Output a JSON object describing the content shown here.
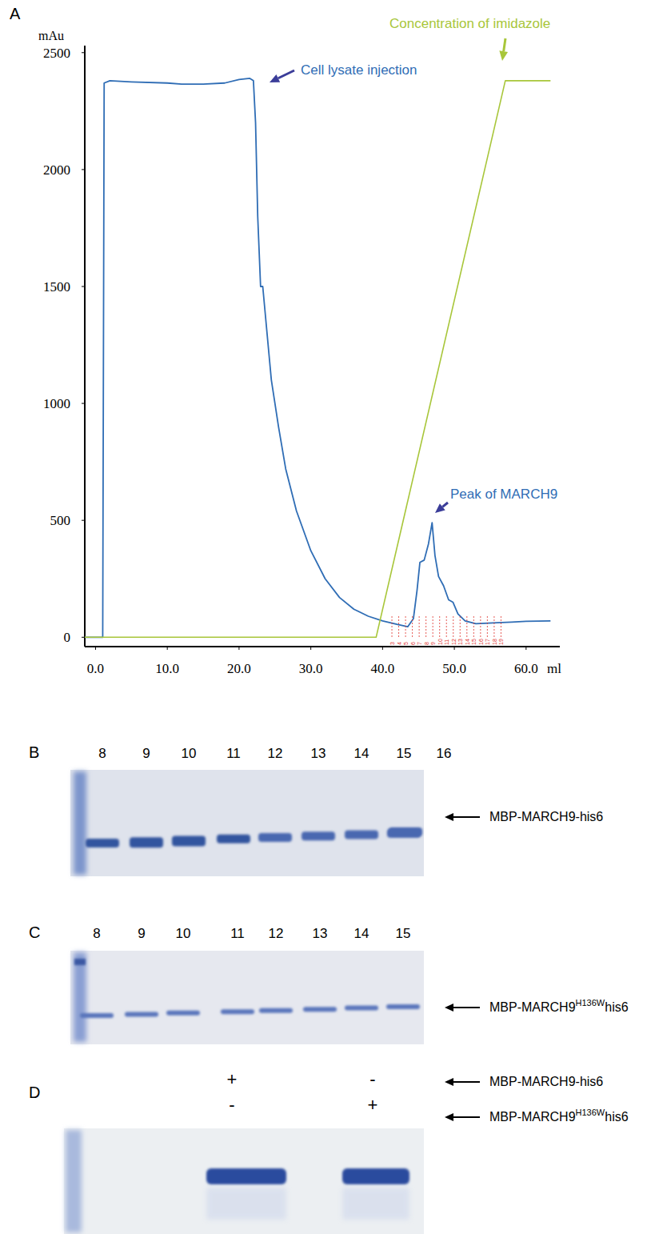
{
  "chart_data": {
    "type": "line",
    "panel_label": "A",
    "y_label": "mAu",
    "x_label": "ml",
    "annotations": [
      "Cell lysate injection",
      "Peak of MARCH9"
    ],
    "xlim": [
      -1.5,
      64.7
    ],
    "ylim": [
      -40,
      2530
    ],
    "xticks": [
      {
        "value": 0,
        "label": "0.0"
      },
      {
        "value": 10,
        "label": "10.0"
      },
      {
        "value": 20,
        "label": "20.0"
      },
      {
        "value": 30,
        "label": "30.0"
      },
      {
        "value": 40,
        "label": "40.0"
      },
      {
        "value": 50,
        "label": "50.0"
      },
      {
        "value": 60,
        "label": "60.0"
      }
    ],
    "yticks": [
      0,
      500,
      1000,
      1500,
      2000,
      2500
    ],
    "grid": false,
    "series": [
      {
        "color": "#2f6db5",
        "x": [
          -1.5,
          1.0,
          1.2,
          2,
          5,
          10,
          12,
          15,
          18,
          20,
          21.5,
          22.0,
          22.3,
          22.6,
          23.0,
          23.3,
          23.6,
          24.5,
          25.5,
          26.5,
          28,
          30,
          32,
          34,
          36,
          38,
          40,
          42,
          43.5,
          44.3,
          44.8,
          45.2,
          45.8,
          46.4,
          46.9,
          47.3,
          47.8,
          48.5,
          49.2,
          49.8,
          50.5,
          51.5,
          53,
          56,
          58,
          60,
          63.4
        ],
        "values": [
          0,
          0,
          2370,
          2380,
          2375,
          2370,
          2365,
          2365,
          2370,
          2385,
          2390,
          2380,
          2200,
          1800,
          1500,
          1500,
          1400,
          1100,
          900,
          720,
          540,
          370,
          250,
          170,
          120,
          90,
          70,
          55,
          45,
          80,
          200,
          320,
          330,
          400,
          490,
          350,
          260,
          220,
          160,
          150,
          100,
          70,
          58,
          62,
          65,
          68,
          70
        ]
      },
      {
        "name": "Concentration of imidazole",
        "color": "#a8c63a",
        "x": [
          -1.5,
          39.1,
          57.1,
          63.4
        ],
        "values": [
          0,
          0,
          2380,
          2380
        ]
      }
    ],
    "fractions": {
      "labels": [
        3,
        4,
        5,
        6,
        7,
        8,
        9,
        10,
        11,
        12,
        13,
        14,
        15,
        16,
        17,
        18,
        19
      ],
      "x": [
        41.3,
        42.25,
        43.2,
        44.15,
        45.1,
        46.05,
        47.0,
        47.95,
        48.9,
        49.85,
        50.8,
        51.75,
        52.7,
        53.65,
        54.6,
        55.55,
        56.5
      ],
      "color": "#e0302a"
    }
  },
  "gels": [
    {
      "panel": "B",
      "lanes": [
        "8",
        "9",
        "10",
        "11",
        "12",
        "13",
        "14",
        "15",
        "16"
      ],
      "band_label": {
        "text": "MBP-MARCH9-his6"
      }
    },
    {
      "panel": "C",
      "lanes": [
        "8",
        "9",
        "10",
        "11",
        "12",
        "13",
        "14",
        "15"
      ],
      "band_label": {
        "text": "MBP-MARCH9",
        "sup": "H136W",
        "rest": "his6"
      }
    },
    {
      "panel": "D",
      "rows": [
        {
          "marks": [
            "+",
            "-"
          ],
          "label": {
            "text": "MBP-MARCH9-his6"
          }
        },
        {
          "marks": [
            "-",
            "+"
          ],
          "label": {
            "text": "MBP-MARCH9",
            "sup": "H136W",
            "rest": "his6"
          }
        }
      ]
    }
  ]
}
